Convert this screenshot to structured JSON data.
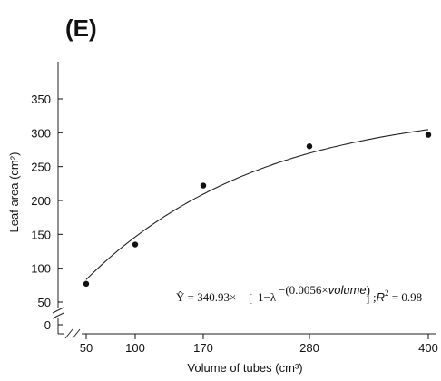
{
  "panel_label": "(E)",
  "chart_data": {
    "type": "scatter",
    "xlabel": "Volume of tubes (cm³)",
    "ylabel": "Leaf area (cm²)",
    "x_ticks": [
      50,
      100,
      170,
      280,
      400
    ],
    "y_ticks": [
      0,
      50,
      100,
      150,
      200,
      250,
      300,
      350
    ],
    "x_ticks_categorical": true,
    "y_axis_break": true,
    "ylim": [
      0,
      350
    ],
    "points": [
      {
        "x": 50,
        "y": 77
      },
      {
        "x": 100,
        "y": 135
      },
      {
        "x": 170,
        "y": 222
      },
      {
        "x": 280,
        "y": 280
      },
      {
        "x": 400,
        "y": 297
      }
    ],
    "fit": {
      "type": "exponential_rise",
      "a": 340.93,
      "k": 0.0056,
      "equation": {
        "yhat": "Ŷ",
        "eq1": " = 340.93×",
        "one_minus": "1−λ",
        "exp_open": "−(0.0056×",
        "exp_var": "volume",
        "exp_close": ")",
        "sep": ";",
        "r_label": "R",
        "r_sup": "2",
        "r_value": " = 0.98"
      }
    },
    "grid": false,
    "legend": "none"
  },
  "colors": {
    "ink": "#111111",
    "background": "#ffffff"
  }
}
